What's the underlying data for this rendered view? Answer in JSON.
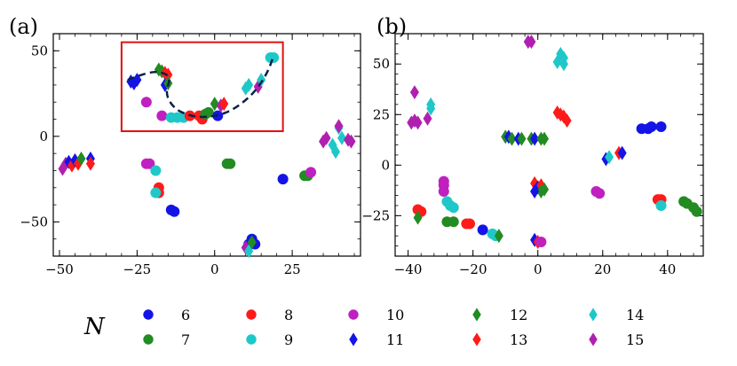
{
  "colors": {
    "6": "#1414e6",
    "7": "#228b22",
    "8": "#ff1a1a",
    "9": "#1ec8c8",
    "10": "#c020c0",
    "11": "#1414e6",
    "12": "#228b22",
    "13": "#ff1a1a",
    "14": "#1ec8c8",
    "15": "#b020b0",
    "box": "#e01010",
    "curve": "#0a1f4a"
  },
  "legend": {
    "title": "N",
    "entries": [
      {
        "n": "6",
        "marker": "circle"
      },
      {
        "n": "8",
        "marker": "circle"
      },
      {
        "n": "10",
        "marker": "circle"
      },
      {
        "n": "12",
        "marker": "diamond"
      },
      {
        "n": "14",
        "marker": "diamond"
      },
      {
        "n": "7",
        "marker": "circle"
      },
      {
        "n": "9",
        "marker": "circle"
      },
      {
        "n": "11",
        "marker": "diamond"
      },
      {
        "n": "13",
        "marker": "diamond"
      },
      {
        "n": "15",
        "marker": "diamond"
      }
    ]
  },
  "chart_data": [
    {
      "type": "scatter",
      "panel_label": "(a)",
      "xlim": [
        -52,
        47
      ],
      "ylim": [
        -70,
        60
      ],
      "xticks": [
        -50,
        -25,
        0,
        25
      ],
      "xtick_labels": [
        "−50",
        "−25",
        "0",
        "25"
      ],
      "yticks": [
        -50,
        0,
        50
      ],
      "ytick_labels": [
        "−50",
        "0",
        "50"
      ],
      "highlight_box": {
        "x0": -30,
        "x1": 22,
        "y0": 3,
        "y1": 55
      },
      "dashed_curve": [
        [
          -28,
          33
        ],
        [
          -22,
          37
        ],
        [
          -18,
          38
        ],
        [
          -14,
          35
        ],
        [
          -16,
          25
        ],
        [
          -13,
          16
        ],
        [
          -8,
          12
        ],
        [
          -3,
          11
        ],
        [
          3,
          13
        ],
        [
          8,
          18
        ],
        [
          13,
          26
        ],
        [
          17,
          37
        ],
        [
          19,
          47
        ]
      ],
      "points": [
        {
          "x": -48,
          "y": -16,
          "n": "15"
        },
        {
          "x": -49,
          "y": -19,
          "n": "15"
        },
        {
          "x": -47,
          "y": -15,
          "n": "11"
        },
        {
          "x": -46,
          "y": -17,
          "n": "13"
        },
        {
          "x": -45,
          "y": -14,
          "n": "11"
        },
        {
          "x": -44,
          "y": -16,
          "n": "13"
        },
        {
          "x": -43,
          "y": -13,
          "n": "12"
        },
        {
          "x": -40,
          "y": -13,
          "n": "11"
        },
        {
          "x": -40,
          "y": -16,
          "n": "13"
        },
        {
          "x": -22,
          "y": -16,
          "n": "10"
        },
        {
          "x": -21,
          "y": -16,
          "n": "10"
        },
        {
          "x": -19,
          "y": -20,
          "n": "9"
        },
        {
          "x": -18,
          "y": -30,
          "n": "8"
        },
        {
          "x": -18,
          "y": -33,
          "n": "8"
        },
        {
          "x": -19,
          "y": -33,
          "n": "9"
        },
        {
          "x": -14,
          "y": -43,
          "n": "6"
        },
        {
          "x": -13,
          "y": -44,
          "n": "6"
        },
        {
          "x": 4,
          "y": -16,
          "n": "7"
        },
        {
          "x": 5,
          "y": -16,
          "n": "7"
        },
        {
          "x": 22,
          "y": -25,
          "n": "6"
        },
        {
          "x": 29,
          "y": -23,
          "n": "7"
        },
        {
          "x": 30,
          "y": -23,
          "n": "7"
        },
        {
          "x": 31,
          "y": -21,
          "n": "10"
        },
        {
          "x": 11,
          "y": -63,
          "n": "6"
        },
        {
          "x": 12,
          "y": -60,
          "n": "6"
        },
        {
          "x": 13,
          "y": -63,
          "n": "6"
        },
        {
          "x": 10,
          "y": -65,
          "n": "15"
        },
        {
          "x": 11,
          "y": -67,
          "n": "14"
        },
        {
          "x": 12,
          "y": -62,
          "n": "12"
        },
        {
          "x": 35,
          "y": -3,
          "n": "15"
        },
        {
          "x": 36,
          "y": -1,
          "n": "15"
        },
        {
          "x": 38,
          "y": -5,
          "n": "14"
        },
        {
          "x": 39,
          "y": -9,
          "n": "14"
        },
        {
          "x": 40,
          "y": 5,
          "n": "14"
        },
        {
          "x": 40,
          "y": 6,
          "n": "15"
        },
        {
          "x": 41,
          "y": -1,
          "n": "14"
        },
        {
          "x": 43,
          "y": -2,
          "n": "15"
        },
        {
          "x": 44,
          "y": -3,
          "n": "15"
        },
        {
          "x": -27,
          "y": 32,
          "n": "11"
        },
        {
          "x": -26,
          "y": 31,
          "n": "11"
        },
        {
          "x": -25,
          "y": 33,
          "n": "11"
        },
        {
          "x": -18,
          "y": 39,
          "n": "12"
        },
        {
          "x": -17,
          "y": 38,
          "n": "12"
        },
        {
          "x": -16,
          "y": 37,
          "n": "13"
        },
        {
          "x": -15,
          "y": 36,
          "n": "13"
        },
        {
          "x": -16,
          "y": 30,
          "n": "11"
        },
        {
          "x": -15,
          "y": 31,
          "n": "12"
        },
        {
          "x": -22,
          "y": 20,
          "n": "10"
        },
        {
          "x": -17,
          "y": 12,
          "n": "10"
        },
        {
          "x": -14,
          "y": 11,
          "n": "9"
        },
        {
          "x": -12,
          "y": 11,
          "n": "9"
        },
        {
          "x": -10,
          "y": 11,
          "n": "9"
        },
        {
          "x": -8,
          "y": 12,
          "n": "8"
        },
        {
          "x": -5,
          "y": 12,
          "n": "8"
        },
        {
          "x": -4,
          "y": 10,
          "n": "8"
        },
        {
          "x": -3,
          "y": 13,
          "n": "7"
        },
        {
          "x": -2,
          "y": 14,
          "n": "7"
        },
        {
          "x": 0,
          "y": 19,
          "n": "12"
        },
        {
          "x": 1,
          "y": 12,
          "n": "6"
        },
        {
          "x": 2,
          "y": 18,
          "n": "15"
        },
        {
          "x": 3,
          "y": 19,
          "n": "13"
        },
        {
          "x": 10,
          "y": 28,
          "n": "14"
        },
        {
          "x": 11,
          "y": 30,
          "n": "14"
        },
        {
          "x": 14,
          "y": 29,
          "n": "15"
        },
        {
          "x": 15,
          "y": 33,
          "n": "14"
        },
        {
          "x": 18,
          "y": 46,
          "n": "9"
        },
        {
          "x": 19,
          "y": 46,
          "n": "9"
        }
      ]
    },
    {
      "type": "scatter",
      "panel_label": "(b)",
      "xlim": [
        -44,
        51
      ],
      "ylim": [
        -45,
        65
      ],
      "xticks": [
        -40,
        -20,
        0,
        20,
        40
      ],
      "xtick_labels": [
        "−40",
        "−20",
        "0",
        "20",
        "40"
      ],
      "yticks": [
        -25,
        0,
        25,
        50
      ],
      "ytick_labels": [
        "−25",
        "0",
        "25",
        "50"
      ],
      "points": [
        {
          "x": -39,
          "y": 21,
          "n": "15"
        },
        {
          "x": -38,
          "y": 22,
          "n": "15"
        },
        {
          "x": -37,
          "y": 21,
          "n": "15"
        },
        {
          "x": -38,
          "y": 36,
          "n": "15"
        },
        {
          "x": -34,
          "y": 23,
          "n": "15"
        },
        {
          "x": -33,
          "y": 28,
          "n": "14"
        },
        {
          "x": -33,
          "y": 30,
          "n": "14"
        },
        {
          "x": -29,
          "y": -8,
          "n": "10"
        },
        {
          "x": -29,
          "y": -10,
          "n": "10"
        },
        {
          "x": -29,
          "y": -13,
          "n": "10"
        },
        {
          "x": -28,
          "y": -18,
          "n": "9"
        },
        {
          "x": -27,
          "y": -20,
          "n": "9"
        },
        {
          "x": -26,
          "y": -21,
          "n": "9"
        },
        {
          "x": -37,
          "y": -22,
          "n": "8"
        },
        {
          "x": -36,
          "y": -23,
          "n": "8"
        },
        {
          "x": -37,
          "y": -26,
          "n": "12"
        },
        {
          "x": -28,
          "y": -28,
          "n": "7"
        },
        {
          "x": -26,
          "y": -28,
          "n": "7"
        },
        {
          "x": -22,
          "y": -29,
          "n": "8"
        },
        {
          "x": -21,
          "y": -29,
          "n": "8"
        },
        {
          "x": -17,
          "y": -32,
          "n": "6"
        },
        {
          "x": -14,
          "y": -34,
          "n": "9"
        },
        {
          "x": -13,
          "y": -35,
          "n": "9"
        },
        {
          "x": -12,
          "y": -35,
          "n": "12"
        },
        {
          "x": -10,
          "y": 14,
          "n": "12"
        },
        {
          "x": -9,
          "y": 14,
          "n": "11"
        },
        {
          "x": -8,
          "y": 13,
          "n": "12"
        },
        {
          "x": -6,
          "y": 13,
          "n": "11"
        },
        {
          "x": -5,
          "y": 13,
          "n": "12"
        },
        {
          "x": -2,
          "y": 13,
          "n": "12"
        },
        {
          "x": -1,
          "y": 13,
          "n": "11"
        },
        {
          "x": 1,
          "y": 13,
          "n": "12"
        },
        {
          "x": 2,
          "y": 13,
          "n": "12"
        },
        {
          "x": -1,
          "y": -9,
          "n": "13"
        },
        {
          "x": 0,
          "y": -11,
          "n": "11"
        },
        {
          "x": 1,
          "y": -10,
          "n": "13"
        },
        {
          "x": 1,
          "y": -13,
          "n": "12"
        },
        {
          "x": 2,
          "y": -12,
          "n": "12"
        },
        {
          "x": -1,
          "y": -13,
          "n": "11"
        },
        {
          "x": -1,
          "y": -37,
          "n": "11"
        },
        {
          "x": 0,
          "y": -38,
          "n": "13"
        },
        {
          "x": 1,
          "y": -38,
          "n": "10"
        },
        {
          "x": -3,
          "y": 61,
          "n": "15"
        },
        {
          "x": -2,
          "y": 61,
          "n": "15"
        },
        {
          "x": 6,
          "y": 51,
          "n": "14"
        },
        {
          "x": 7,
          "y": 55,
          "n": "14"
        },
        {
          "x": 8,
          "y": 50,
          "n": "14"
        },
        {
          "x": 8,
          "y": 53,
          "n": "14"
        },
        {
          "x": 6,
          "y": 26,
          "n": "13"
        },
        {
          "x": 7,
          "y": 25,
          "n": "13"
        },
        {
          "x": 8,
          "y": 24,
          "n": "13"
        },
        {
          "x": 9,
          "y": 22,
          "n": "13"
        },
        {
          "x": 18,
          "y": -13,
          "n": "10"
        },
        {
          "x": 19,
          "y": -14,
          "n": "10"
        },
        {
          "x": 21,
          "y": 3,
          "n": "11"
        },
        {
          "x": 22,
          "y": 4,
          "n": "14"
        },
        {
          "x": 25,
          "y": 6,
          "n": "13"
        },
        {
          "x": 26,
          "y": 6,
          "n": "11"
        },
        {
          "x": 32,
          "y": 18,
          "n": "6"
        },
        {
          "x": 34,
          "y": 18,
          "n": "6"
        },
        {
          "x": 35,
          "y": 19,
          "n": "6"
        },
        {
          "x": 38,
          "y": 19,
          "n": "6"
        },
        {
          "x": 37,
          "y": -17,
          "n": "8"
        },
        {
          "x": 38,
          "y": -17,
          "n": "8"
        },
        {
          "x": 38,
          "y": -20,
          "n": "9"
        },
        {
          "x": 45,
          "y": -18,
          "n": "7"
        },
        {
          "x": 46,
          "y": -19,
          "n": "7"
        },
        {
          "x": 48,
          "y": -21,
          "n": "7"
        },
        {
          "x": 49,
          "y": -23,
          "n": "7"
        }
      ]
    }
  ]
}
